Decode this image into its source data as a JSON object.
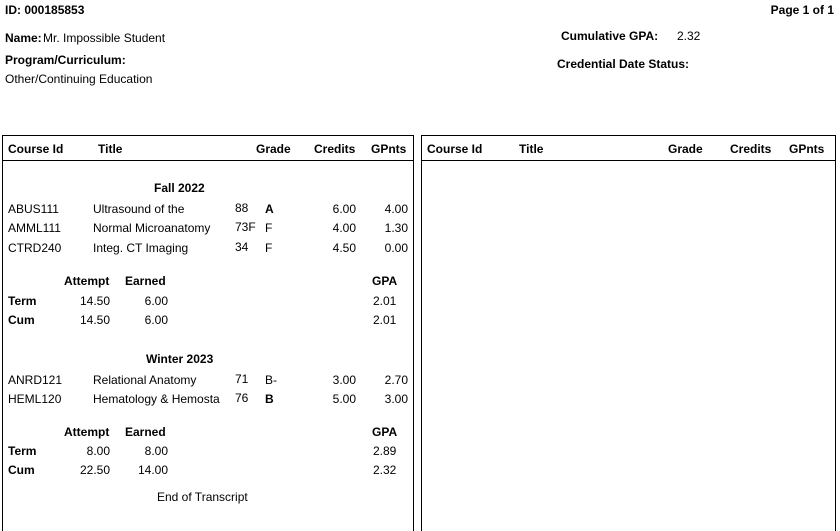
{
  "header": {
    "id_text": "ID: 000185853",
    "page_text": "Page 1 of 1",
    "name_label": "Name:",
    "name_value": "Mr. Impossible Student",
    "cgpa_label": "Cumulative GPA:",
    "cgpa_value": "2.32",
    "program_label": "Program/Curriculum:",
    "program_value": "Other/Continuing Education",
    "credential_label": "Credential Date Status:"
  },
  "columns": {
    "course_id": "Course Id",
    "title": "Title",
    "grade": "Grade",
    "credits": "Credits",
    "gpnts": "GPnts"
  },
  "terms": [
    {
      "name": "Fall  2022",
      "courses": [
        {
          "id": "ABUS111",
          "title": "Ultrasound of the",
          "score": "88",
          "grade": "A",
          "credits": "6.00",
          "gpnts": "4.00"
        },
        {
          "id": "AMML111",
          "title": "Normal Microanatomy",
          "score": "73F",
          "grade": "F",
          "credits": "4.00",
          "gpnts": "1.30"
        },
        {
          "id": "CTRD240",
          "title": "Integ. CT Imaging",
          "score": "34",
          "grade": "F",
          "credits": "4.50",
          "gpnts": "0.00"
        }
      ],
      "summary_header": {
        "attempt": "Attempt",
        "earned": "Earned",
        "gpa": "GPA"
      },
      "term_row": {
        "label": "Term",
        "attempt": "14.50",
        "earned": "6.00",
        "gpa": "2.01"
      },
      "cum_row": {
        "label": "Cum",
        "attempt": "14.50",
        "earned": "6.00",
        "gpa": "2.01"
      }
    },
    {
      "name": "Winter  2023",
      "courses": [
        {
          "id": "ANRD121",
          "title": "Relational Anatomy",
          "score": "71",
          "grade": "B-",
          "credits": "3.00",
          "gpnts": "2.70"
        },
        {
          "id": "HEML120",
          "title": "Hematology & Hemosta",
          "score": "76",
          "grade": "B",
          "credits": "5.00",
          "gpnts": "3.00"
        }
      ],
      "summary_header": {
        "attempt": "Attempt",
        "earned": "Earned",
        "gpa": "GPA"
      },
      "term_row": {
        "label": "Term",
        "attempt": "8.00",
        "earned": "8.00",
        "gpa": "2.89"
      },
      "cum_row": {
        "label": "Cum",
        "attempt": "22.50",
        "earned": "14.00",
        "gpa": "2.32"
      }
    }
  ],
  "footer": {
    "end_text": "End of Transcript"
  }
}
